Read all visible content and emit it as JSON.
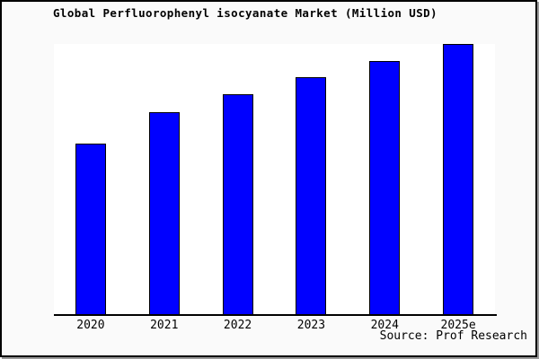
{
  "title": "Global Perfluorophenyl isocyanate Market (Million USD)",
  "source_label": "Source: Prof Research",
  "colors": {
    "bar_fill": "#0000ff",
    "bar_border": "#000000",
    "plot_background": "#ffffff",
    "outer_background": "#fafafa",
    "frame_border": "#000000",
    "frame_shadow": "#9a9a9a",
    "text": "#000000"
  },
  "chart_data": {
    "type": "bar",
    "title": "Global Perfluorophenyl isocyanate Market (Million USD)",
    "categories": [
      "2020",
      "2021",
      "2022",
      "2023",
      "2024",
      "2025e"
    ],
    "values_relative_pct": [
      63,
      74.7,
      81.3,
      87.7,
      93.7,
      100
    ],
    "value_note": "No y-axis, ticks, labels or gridlines are shown; values are bar heights measured as percent of the tallest bar (2025e = 100%).",
    "series_name": "Market size (Million USD)",
    "xlabel": "",
    "ylabel": "",
    "legend": "none",
    "gridlines": false,
    "bar_color": "#0000ff",
    "bar_border_color": "#000000"
  }
}
